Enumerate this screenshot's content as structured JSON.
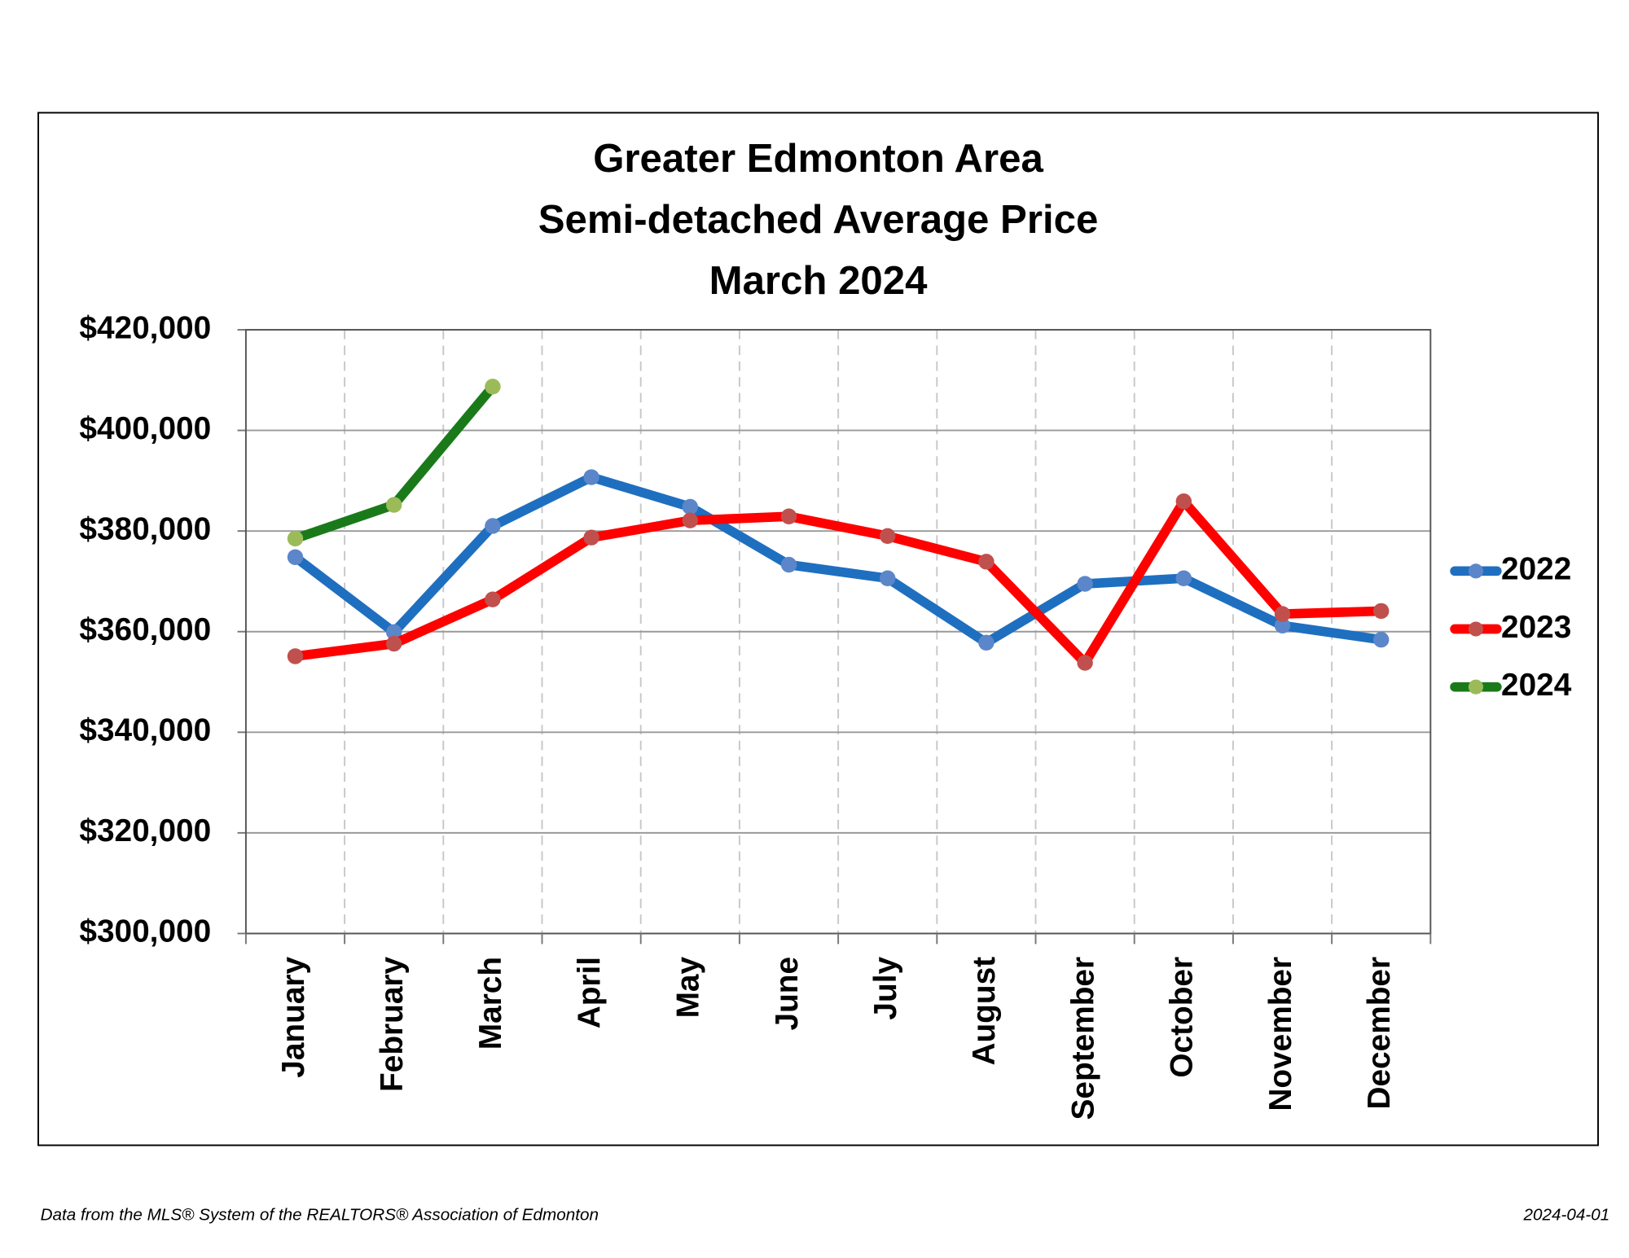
{
  "chart_data": {
    "type": "line",
    "title_lines": [
      "Greater Edmonton Area",
      "Semi-detached Average Price",
      "March 2024"
    ],
    "categories": [
      "January",
      "February",
      "March",
      "April",
      "May",
      "June",
      "July",
      "August",
      "September",
      "October",
      "November",
      "December"
    ],
    "series": [
      {
        "name": "2022",
        "color": "#1f6fc0",
        "marker_color": "#5b86c9",
        "values": [
          374800,
          359900,
          381000,
          390700,
          384800,
          373300,
          370600,
          357800,
          369500,
          370600,
          361200,
          358400
        ]
      },
      {
        "name": "2023",
        "color": "#ff0000",
        "marker_color": "#c0504d",
        "values": [
          355100,
          357600,
          366400,
          378700,
          382100,
          382900,
          379000,
          373900,
          353800,
          385900,
          363500,
          364100
        ]
      },
      {
        "name": "2024",
        "color": "#1a7a1a",
        "marker_color": "#9bbb59",
        "values": [
          378500,
          385200,
          408700,
          null,
          null,
          null,
          null,
          null,
          null,
          null,
          null,
          null
        ]
      }
    ],
    "ylim": [
      300000,
      420000
    ],
    "yticks": [
      {
        "value": 300000,
        "label": "$300,000"
      },
      {
        "value": 320000,
        "label": "$320,000"
      },
      {
        "value": 340000,
        "label": "$340,000"
      },
      {
        "value": 360000,
        "label": "$360,000"
      },
      {
        "value": 380000,
        "label": "$380,000"
      },
      {
        "value": 400000,
        "label": "$400,000"
      },
      {
        "value": 420000,
        "label": "$420,000"
      }
    ],
    "grid": true,
    "legend": "right",
    "source": "Data from the MLS® System of the REALTORS® Association of Edmonton",
    "date": "2024-04-01"
  }
}
